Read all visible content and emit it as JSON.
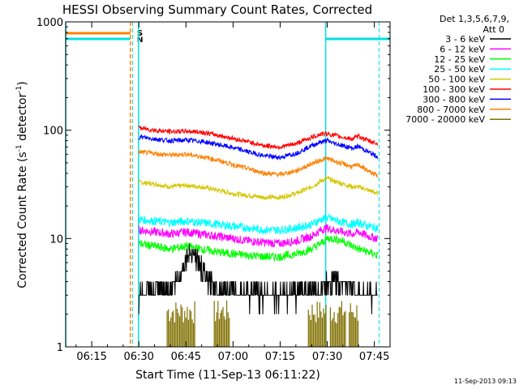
{
  "chart_data": {
    "type": "line",
    "title": "HESSI Observing Summary Count Rates, Corrected",
    "xlabel": "Start Time (11-Sep-13 06:11:22)",
    "ylabel_main": "Corrected Count Rate (s",
    "ylabel_sup1": "-1",
    "ylabel_mid": " detector",
    "ylabel_sup2": "-1",
    "ylabel_end": ")",
    "timestamp": "11-Sep-2013 09:13",
    "x_range_min": [
      6.7,
      48.8
    ],
    "y_scale": "log",
    "ylim": [
      1,
      1000
    ],
    "x_ticks": [
      {
        "label": "06:15",
        "min": 15
      },
      {
        "label": "06:30",
        "min": 30
      },
      {
        "label": "06:45",
        "min": 45
      },
      {
        "label": "07:00",
        "min": 60
      },
      {
        "label": "07:15",
        "min": 75
      },
      {
        "label": "07:30",
        "min": 90
      },
      {
        "label": "07:45",
        "min": 105
      }
    ],
    "y_ticks": [
      {
        "label": "1",
        "value": 1
      },
      {
        "label": "10",
        "value": 10
      },
      {
        "label": "100",
        "value": 100
      },
      {
        "label": "1000",
        "value": 1000
      }
    ],
    "legend_header": [
      "Det 1,3,5,6,7,9,",
      "Att 0"
    ],
    "flags": [
      {
        "label": "S",
        "color": "#ff8000"
      },
      {
        "label": "N",
        "color": "#00e0e0"
      }
    ],
    "series": [
      {
        "name": "3 - 6 keV",
        "color": "#000000",
        "points": [
          [
            30,
            3
          ],
          [
            35,
            3.2
          ],
          [
            40,
            3.5
          ],
          [
            43,
            4.5
          ],
          [
            45,
            6.5
          ],
          [
            47,
            7.8
          ],
          [
            49,
            6
          ],
          [
            52,
            4
          ],
          [
            55,
            3.5
          ],
          [
            60,
            3.2
          ],
          [
            65,
            3.1
          ],
          [
            70,
            3
          ],
          [
            75,
            3
          ],
          [
            80,
            3.1
          ],
          [
            85,
            3.2
          ],
          [
            88,
            3.5
          ],
          [
            90,
            4
          ],
          [
            92,
            4.2
          ],
          [
            95,
            3.8
          ],
          [
            98,
            3.5
          ],
          [
            100,
            3.3
          ],
          [
            103,
            3
          ],
          [
            106,
            2.9
          ]
        ]
      },
      {
        "name": "6 - 12 keV",
        "color": "#ff00ff",
        "points": [
          [
            30,
            12
          ],
          [
            35,
            11.5
          ],
          [
            40,
            11
          ],
          [
            45,
            11.5
          ],
          [
            50,
            11
          ],
          [
            55,
            10.5
          ],
          [
            60,
            10
          ],
          [
            65,
            9.5
          ],
          [
            70,
            9.2
          ],
          [
            75,
            9
          ],
          [
            80,
            9.5
          ],
          [
            85,
            10.5
          ],
          [
            88,
            12
          ],
          [
            90,
            12.5
          ],
          [
            92,
            12
          ],
          [
            95,
            11.5
          ],
          [
            98,
            11
          ],
          [
            100,
            11.5
          ],
          [
            103,
            10.5
          ],
          [
            106,
            10
          ]
        ]
      },
      {
        "name": "12 - 25 keV",
        "color": "#00ff00",
        "points": [
          [
            30,
            9
          ],
          [
            35,
            8.5
          ],
          [
            40,
            8
          ],
          [
            45,
            8.5
          ],
          [
            50,
            8
          ],
          [
            55,
            7.5
          ],
          [
            60,
            7.2
          ],
          [
            65,
            7
          ],
          [
            70,
            6.8
          ],
          [
            75,
            6.8
          ],
          [
            80,
            7.2
          ],
          [
            85,
            8
          ],
          [
            88,
            9
          ],
          [
            90,
            10
          ],
          [
            92,
            10
          ],
          [
            95,
            9.5
          ],
          [
            98,
            8.5
          ],
          [
            100,
            8
          ],
          [
            103,
            7.5
          ],
          [
            106,
            7
          ]
        ]
      },
      {
        "name": "25 - 50 keV",
        "color": "#00ffff",
        "points": [
          [
            30,
            15
          ],
          [
            35,
            14.5
          ],
          [
            40,
            14
          ],
          [
            45,
            14.5
          ],
          [
            50,
            14
          ],
          [
            55,
            13.5
          ],
          [
            60,
            13
          ],
          [
            65,
            12.5
          ],
          [
            70,
            12
          ],
          [
            75,
            12
          ],
          [
            80,
            12.5
          ],
          [
            85,
            13.5
          ],
          [
            88,
            15
          ],
          [
            90,
            15.5
          ],
          [
            92,
            15
          ],
          [
            95,
            14
          ],
          [
            98,
            13.5
          ],
          [
            100,
            14
          ],
          [
            103,
            13
          ],
          [
            106,
            12.5
          ]
        ]
      },
      {
        "name": "50 - 100 keV",
        "color": "#d4c600",
        "points": [
          [
            30,
            33
          ],
          [
            35,
            32
          ],
          [
            40,
            30
          ],
          [
            45,
            31
          ],
          [
            50,
            30
          ],
          [
            55,
            28
          ],
          [
            60,
            26
          ],
          [
            65,
            25
          ],
          [
            70,
            24
          ],
          [
            75,
            24
          ],
          [
            80,
            26
          ],
          [
            85,
            30
          ],
          [
            88,
            34
          ],
          [
            90,
            36
          ],
          [
            92,
            34
          ],
          [
            95,
            32
          ],
          [
            98,
            30
          ],
          [
            100,
            30
          ],
          [
            103,
            28
          ],
          [
            106,
            26
          ]
        ]
      },
      {
        "name": "100 - 300 keV",
        "color": "#ff0000",
        "points": [
          [
            30,
            105
          ],
          [
            35,
            100
          ],
          [
            40,
            97
          ],
          [
            45,
            98
          ],
          [
            50,
            96
          ],
          [
            55,
            90
          ],
          [
            60,
            84
          ],
          [
            65,
            78
          ],
          [
            70,
            72
          ],
          [
            75,
            70
          ],
          [
            80,
            75
          ],
          [
            85,
            86
          ],
          [
            88,
            92
          ],
          [
            90,
            93
          ],
          [
            92,
            90
          ],
          [
            95,
            86
          ],
          [
            98,
            83
          ],
          [
            100,
            88
          ],
          [
            103,
            80
          ],
          [
            106,
            75
          ]
        ]
      },
      {
        "name": "300 - 800 keV",
        "color": "#0000ff",
        "points": [
          [
            30,
            87
          ],
          [
            35,
            83
          ],
          [
            40,
            80
          ],
          [
            45,
            81
          ],
          [
            50,
            79
          ],
          [
            55,
            74
          ],
          [
            60,
            69
          ],
          [
            65,
            63
          ],
          [
            70,
            58
          ],
          [
            75,
            56
          ],
          [
            80,
            61
          ],
          [
            85,
            72
          ],
          [
            88,
            78
          ],
          [
            90,
            80
          ],
          [
            92,
            76
          ],
          [
            95,
            72
          ],
          [
            98,
            68
          ],
          [
            100,
            71
          ],
          [
            103,
            63
          ],
          [
            106,
            57
          ]
        ]
      },
      {
        "name": "800 - 7000 keV",
        "color": "#ff8000",
        "points": [
          [
            30,
            63
          ],
          [
            35,
            61
          ],
          [
            40,
            59
          ],
          [
            45,
            60
          ],
          [
            50,
            57
          ],
          [
            55,
            53
          ],
          [
            60,
            48
          ],
          [
            65,
            44
          ],
          [
            70,
            40
          ],
          [
            75,
            39
          ],
          [
            80,
            42
          ],
          [
            85,
            49
          ],
          [
            88,
            53
          ],
          [
            90,
            55
          ],
          [
            92,
            52
          ],
          [
            95,
            49
          ],
          [
            98,
            46
          ],
          [
            100,
            48
          ],
          [
            103,
            42
          ],
          [
            106,
            38
          ]
        ]
      },
      {
        "name": "7000 - 20000 keV",
        "color": "#807000",
        "points": []
      }
    ]
  }
}
